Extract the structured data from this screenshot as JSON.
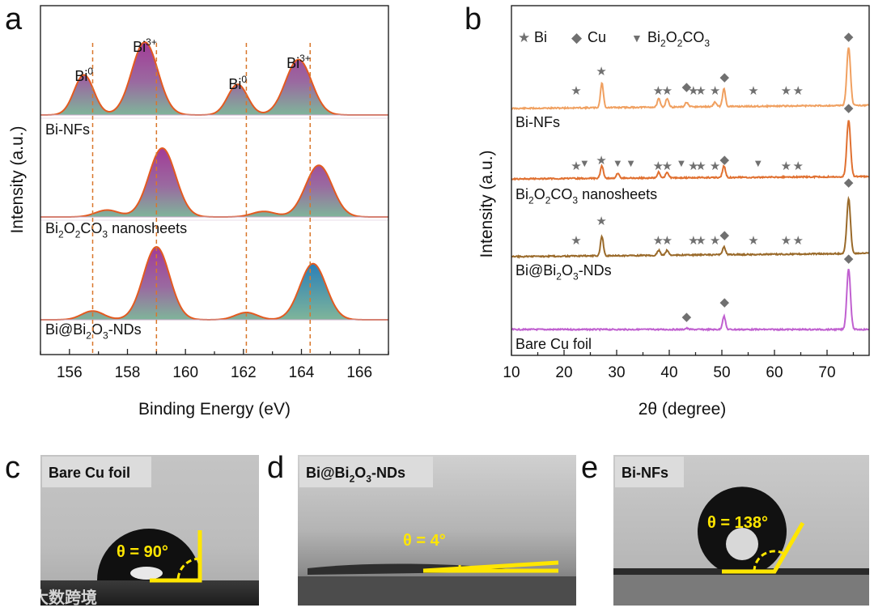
{
  "panel_letters": {
    "a": "a",
    "b": "b",
    "c": "c",
    "d": "d",
    "e": "e"
  },
  "watermark": "大数跨境",
  "chart_data": [
    {
      "type": "area",
      "panel": "a",
      "xlabel": "Binding Energy (eV)",
      "ylabel": "Intensity (a.u.)",
      "xlim": [
        155,
        167
      ],
      "xticks": [
        156,
        158,
        160,
        162,
        164,
        166
      ],
      "reference_lines": [
        156.8,
        159.0,
        162.1,
        164.3
      ],
      "peak_labels": [
        {
          "base": "Bi",
          "sup": "0",
          "x": 156.5
        },
        {
          "base": "Bi",
          "sup": "3+",
          "x": 158.6
        },
        {
          "base": "Bi",
          "sup": "0",
          "x": 161.8
        },
        {
          "base": "Bi",
          "sup": "3+",
          "x": 163.9
        }
      ],
      "series": [
        {
          "name": "Bi-NFs",
          "label": {
            "parts": [
              {
                "t": "Bi-NFs"
              }
            ]
          },
          "peaks": [
            {
              "center": 156.5,
              "height": 0.55,
              "width": 0.34
            },
            {
              "center": 158.6,
              "height": 1.0,
              "width": 0.45
            },
            {
              "center": 161.8,
              "height": 0.42,
              "width": 0.34
            },
            {
              "center": 163.9,
              "height": 0.76,
              "width": 0.45
            }
          ],
          "fill_top": "#a23b97",
          "fill_bottom": "#7fb59a",
          "edge": "#e35a20"
        },
        {
          "name": "Bi2O2CO3 nanosheets",
          "label": {
            "parts": [
              {
                "t": "Bi"
              },
              {
                "t": "2",
                "sub": true
              },
              {
                "t": "O"
              },
              {
                "t": "2",
                "sub": true
              },
              {
                "t": "CO"
              },
              {
                "t": "3",
                "sub": true
              },
              {
                "t": " nanosheets"
              }
            ]
          },
          "peaks": [
            {
              "center": 157.3,
              "height": 0.1,
              "width": 0.4
            },
            {
              "center": 159.2,
              "height": 1.0,
              "width": 0.46
            },
            {
              "center": 162.7,
              "height": 0.08,
              "width": 0.4
            },
            {
              "center": 164.6,
              "height": 0.75,
              "width": 0.46
            }
          ],
          "fill_top": "#a23b97",
          "fill_bottom": "#7fb59a",
          "edge": "#e35a20"
        },
        {
          "name": "Bi@Bi2O3-NDs",
          "label": {
            "parts": [
              {
                "t": "Bi@Bi"
              },
              {
                "t": "2",
                "sub": true
              },
              {
                "t": "O"
              },
              {
                "t": "3",
                "sub": true
              },
              {
                "t": "-NDs"
              }
            ]
          },
          "peaks": [
            {
              "center": 156.8,
              "height": 0.12,
              "width": 0.38
            },
            {
              "center": 159.0,
              "height": 1.0,
              "width": 0.45
            },
            {
              "center": 162.1,
              "height": 0.1,
              "width": 0.38
            },
            {
              "center": 164.4,
              "height": 0.77,
              "width": 0.45
            }
          ],
          "fill_top": "#a23b97",
          "fill_bottom": "#7fb59a",
          "fill_top_alt": "#2a7fb8",
          "edge": "#e35a20"
        }
      ]
    },
    {
      "type": "line",
      "panel": "b",
      "xlabel": "2θ (degree)",
      "ylabel": "Intensity (a.u.)",
      "xlim": [
        10,
        78
      ],
      "xticks": [
        10,
        20,
        30,
        40,
        50,
        60,
        70
      ],
      "legend": [
        {
          "symbol": "★",
          "label": "Bi"
        },
        {
          "symbol": "◆",
          "label": "Cu"
        },
        {
          "symbol": "▼",
          "label": {
            "parts": [
              {
                "t": "Bi"
              },
              {
                "t": "2",
                "sub": true
              },
              {
                "t": "O"
              },
              {
                "t": "2",
                "sub": true
              },
              {
                "t": "CO"
              },
              {
                "t": "3",
                "sub": true
              }
            ]
          }
        }
      ],
      "series": [
        {
          "name": "Bi-NFs",
          "label": {
            "parts": [
              {
                "t": "Bi-NFs"
              }
            ]
          },
          "color": "#f0a060",
          "peaks": [
            {
              "x": 27.2,
              "h": 0.42
            },
            {
              "x": 38.0,
              "h": 0.14
            },
            {
              "x": 39.6,
              "h": 0.15
            },
            {
              "x": 43.3,
              "h": 0.08
            },
            {
              "x": 48.7,
              "h": 0.08
            },
            {
              "x": 50.4,
              "h": 0.3
            },
            {
              "x": 74.1,
              "h": 1.0
            }
          ],
          "markers": [
            {
              "s": "★",
              "x": 22.3
            },
            {
              "s": "★",
              "x": 27.1
            },
            {
              "s": "★",
              "x": 37.9
            },
            {
              "s": "★",
              "x": 39.6
            },
            {
              "s": "◆",
              "x": 43.3
            },
            {
              "s": "★",
              "x": 44.6
            },
            {
              "s": "★",
              "x": 46.0
            },
            {
              "s": "★",
              "x": 48.7
            },
            {
              "s": "◆",
              "x": 50.5
            },
            {
              "s": "★",
              "x": 56.0
            },
            {
              "s": "★",
              "x": 62.2
            },
            {
              "s": "★",
              "x": 64.5
            },
            {
              "s": "◆",
              "x": 74.1
            }
          ]
        },
        {
          "name": "Bi2O2CO3 nanosheets",
          "label": {
            "parts": [
              {
                "t": "Bi"
              },
              {
                "t": "2",
                "sub": true
              },
              {
                "t": "O"
              },
              {
                "t": "2",
                "sub": true
              },
              {
                "t": "CO"
              },
              {
                "t": "3",
                "sub": true
              },
              {
                "t": " nanosheets"
              }
            ]
          },
          "color": "#e07030",
          "peaks": [
            {
              "x": 27.2,
              "h": 0.22
            },
            {
              "x": 30.2,
              "h": 0.08
            },
            {
              "x": 38.0,
              "h": 0.1
            },
            {
              "x": 39.6,
              "h": 0.1
            },
            {
              "x": 50.4,
              "h": 0.2
            },
            {
              "x": 74.1,
              "h": 1.0
            }
          ],
          "markers": [
            {
              "s": "★",
              "x": 22.3
            },
            {
              "s": "▼",
              "x": 23.9
            },
            {
              "s": "★",
              "x": 27.1
            },
            {
              "s": "▼",
              "x": 30.2
            },
            {
              "s": "▼",
              "x": 32.7
            },
            {
              "s": "★",
              "x": 37.9
            },
            {
              "s": "★",
              "x": 39.6
            },
            {
              "s": "▼",
              "x": 42.3
            },
            {
              "s": "★",
              "x": 44.6
            },
            {
              "s": "★",
              "x": 46.0
            },
            {
              "s": "★",
              "x": 48.7
            },
            {
              "s": "◆",
              "x": 50.5
            },
            {
              "s": "▼",
              "x": 56.9
            },
            {
              "s": "★",
              "x": 62.2
            },
            {
              "s": "★",
              "x": 64.5
            },
            {
              "s": "◆",
              "x": 74.1
            }
          ]
        },
        {
          "name": "Bi@Bi2O3-NDs",
          "label": {
            "parts": [
              {
                "t": "Bi@Bi"
              },
              {
                "t": "2",
                "sub": true
              },
              {
                "t": "O"
              },
              {
                "t": "3",
                "sub": true
              },
              {
                "t": "-NDs"
              }
            ]
          },
          "color": "#9a6a2a",
          "peaks": [
            {
              "x": 27.2,
              "h": 0.35
            },
            {
              "x": 38.0,
              "h": 0.09
            },
            {
              "x": 39.6,
              "h": 0.09
            },
            {
              "x": 50.4,
              "h": 0.15
            },
            {
              "x": 74.1,
              "h": 1.0
            }
          ],
          "markers": [
            {
              "s": "★",
              "x": 22.3
            },
            {
              "s": "★",
              "x": 27.1
            },
            {
              "s": "★",
              "x": 37.9
            },
            {
              "s": "★",
              "x": 39.6
            },
            {
              "s": "★",
              "x": 44.6
            },
            {
              "s": "★",
              "x": 46.0
            },
            {
              "s": "★",
              "x": 48.7
            },
            {
              "s": "◆",
              "x": 50.5
            },
            {
              "s": "★",
              "x": 56.0
            },
            {
              "s": "★",
              "x": 62.2
            },
            {
              "s": "★",
              "x": 64.5
            },
            {
              "s": "◆",
              "x": 74.1
            }
          ]
        },
        {
          "name": "Bare Cu foil",
          "label": {
            "parts": [
              {
                "t": "Bare Cu foil"
              }
            ]
          },
          "color": "#c060d0",
          "peaks": [
            {
              "x": 43.3,
              "h": 0.02
            },
            {
              "x": 50.4,
              "h": 0.22
            },
            {
              "x": 74.1,
              "h": 1.0
            }
          ],
          "markers": [
            {
              "s": "◆",
              "x": 43.3
            },
            {
              "s": "◆",
              "x": 50.5
            },
            {
              "s": "◆",
              "x": 74.1
            }
          ]
        }
      ]
    }
  ],
  "contact_angle_panels": [
    {
      "panel": "c",
      "label": {
        "parts": [
          {
            "t": "Bare Cu foil"
          }
        ]
      },
      "angle_text": "θ = 90°",
      "angle_deg": 90
    },
    {
      "panel": "d",
      "label": {
        "parts": [
          {
            "t": "Bi@Bi"
          },
          {
            "t": "2",
            "sub": true
          },
          {
            "t": "O"
          },
          {
            "t": "3",
            "sub": true
          },
          {
            "t": "-NDs"
          }
        ]
      },
      "angle_text": "θ = 4°",
      "angle_deg": 4
    },
    {
      "panel": "e",
      "label": {
        "parts": [
          {
            "t": "Bi-NFs"
          }
        ]
      },
      "angle_text": "θ = 138°",
      "angle_deg": 138
    }
  ],
  "colors": {
    "annotation": "#ffe600",
    "refline": "#d9772b",
    "marker": "#707070"
  }
}
